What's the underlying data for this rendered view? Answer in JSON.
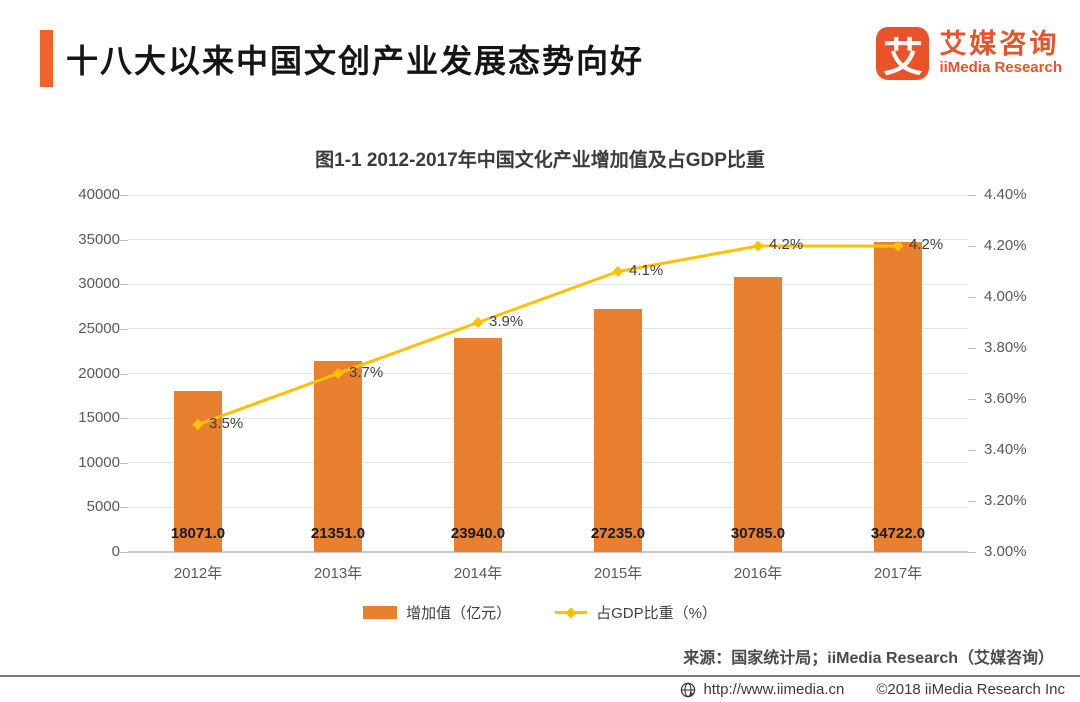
{
  "header": {
    "title": "十八大以来中国文创产业发展态势向好",
    "logo": {
      "icon_char": "艾",
      "brand_cn": "艾媒咨询",
      "brand_en": "iiMedia Research"
    }
  },
  "chart_data": {
    "type": "combo-bar-line",
    "title": "图1-1 2012-2017年中国文化产业增加值及占GDP比重",
    "categories": [
      "2012年",
      "2013年",
      "2014年",
      "2015年",
      "2016年",
      "2017年"
    ],
    "series": [
      {
        "name": "增加值（亿元）",
        "type": "bar",
        "axis": "left",
        "values": [
          18071.0,
          21351.0,
          23940.0,
          27235.0,
          30785.0,
          34722.0
        ],
        "labels": [
          "18071.0",
          "21351.0",
          "23940.0",
          "27235.0",
          "30785.0",
          "34722.0"
        ],
        "color": "#E8802F"
      },
      {
        "name": "占GDP比重（%）",
        "type": "line",
        "axis": "right",
        "values": [
          3.5,
          3.7,
          3.9,
          4.1,
          4.2,
          4.2
        ],
        "labels": [
          "3.5%",
          "3.7%",
          "3.9%",
          "4.1%",
          "4.2%",
          "4.2%"
        ],
        "color": "#FFC000"
      }
    ],
    "left_axis": {
      "min": 0,
      "max": 40000,
      "step": 5000,
      "ticks": [
        "0",
        "5000",
        "10000",
        "15000",
        "20000",
        "25000",
        "30000",
        "35000",
        "40000"
      ]
    },
    "right_axis": {
      "min": 3.0,
      "max": 4.4,
      "step": 0.2,
      "ticks": [
        "3.00%",
        "3.20%",
        "3.40%",
        "3.60%",
        "3.80%",
        "4.00%",
        "4.20%",
        "4.40%"
      ]
    },
    "grid": true,
    "legend_position": "bottom"
  },
  "source_note": "来源：国家统计局；iiMedia Research（艾媒咨询）",
  "footer": {
    "url": "http://www.iimedia.cn",
    "copyright": "©2018  iiMedia Research Inc"
  },
  "colors": {
    "accent": "#F0622A",
    "logo": "#E8532A",
    "bar": "#E8802F",
    "line": "#FFC000"
  }
}
